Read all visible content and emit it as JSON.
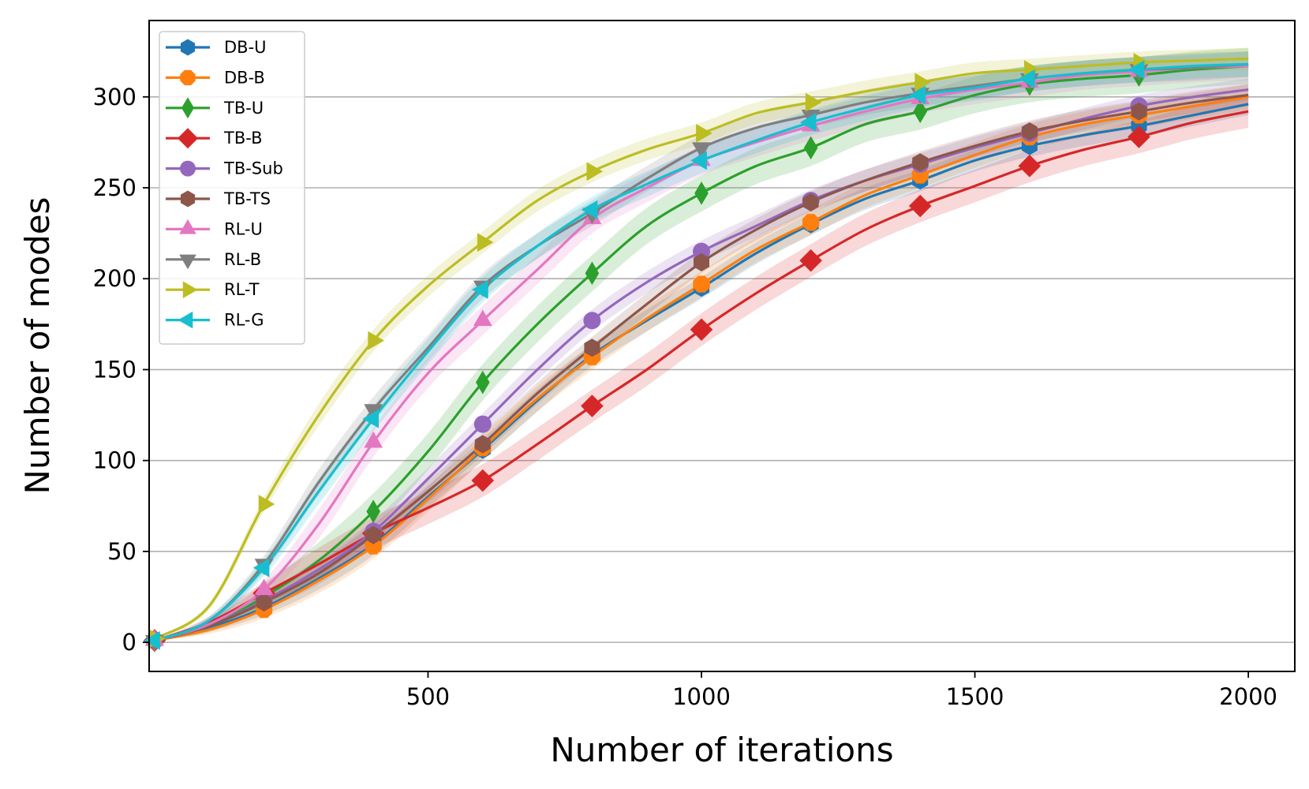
{
  "chart_data": {
    "type": "line",
    "title": "",
    "xlabel": "Number of iterations",
    "ylabel": "Number of modes",
    "xlim": [
      -10,
      2085
    ],
    "ylim": [
      -16,
      342
    ],
    "xticks": [
      500,
      1000,
      1500,
      2000
    ],
    "yticks": [
      0,
      50,
      100,
      150,
      200,
      250,
      300
    ],
    "grid": "horizontal",
    "legend_position": "top-left",
    "marker_x": [
      0,
      200,
      400,
      600,
      800,
      1000,
      1200,
      1400,
      1600,
      1800
    ],
    "series": [
      {
        "name": "DB-U",
        "color": "#1f77b4",
        "marker": "hexagon",
        "x": [
          0,
          100,
          200,
          300,
          400,
          500,
          600,
          700,
          800,
          900,
          1000,
          1100,
          1200,
          1300,
          1400,
          1500,
          1600,
          1700,
          1800,
          1900,
          2000
        ],
        "values": [
          1,
          8,
          19,
          35,
          54,
          80,
          106,
          133,
          158,
          177,
          195,
          214,
          230,
          244,
          254,
          265,
          273,
          279,
          284,
          290,
          296
        ],
        "band": 6
      },
      {
        "name": "DB-B",
        "color": "#ff7f0e",
        "marker": "octagon",
        "x": [
          0,
          100,
          200,
          300,
          400,
          500,
          600,
          700,
          800,
          900,
          1000,
          1100,
          1200,
          1300,
          1400,
          1500,
          1600,
          1700,
          1800,
          1900,
          2000
        ],
        "values": [
          1,
          7,
          18,
          34,
          53,
          79,
          107,
          134,
          157,
          178,
          197,
          216,
          231,
          246,
          257,
          268,
          278,
          285,
          290,
          295,
          300
        ],
        "band": 7
      },
      {
        "name": "TB-U",
        "color": "#2ca02c",
        "marker": "thin-diamond",
        "x": [
          0,
          100,
          200,
          300,
          400,
          500,
          600,
          700,
          800,
          900,
          1000,
          1100,
          1200,
          1300,
          1400,
          1500,
          1600,
          1700,
          1800,
          1900,
          2000
        ],
        "values": [
          1,
          9,
          25,
          45,
          72,
          105,
          143,
          175,
          203,
          229,
          247,
          262,
          272,
          285,
          292,
          301,
          307,
          310,
          312,
          315,
          317
        ],
        "band": 10
      },
      {
        "name": "TB-B",
        "color": "#d62728",
        "marker": "diamond",
        "x": [
          0,
          100,
          200,
          300,
          400,
          500,
          600,
          700,
          800,
          900,
          1000,
          1100,
          1200,
          1300,
          1400,
          1500,
          1600,
          1700,
          1800,
          1900,
          2000
        ],
        "values": [
          1,
          11,
          27,
          43,
          60,
          74,
          89,
          109,
          130,
          150,
          172,
          192,
          210,
          227,
          240,
          251,
          262,
          271,
          278,
          286,
          292
        ],
        "band": 9
      },
      {
        "name": "TB-Sub",
        "color": "#9467bd",
        "marker": "circle",
        "x": [
          0,
          100,
          200,
          300,
          400,
          500,
          600,
          700,
          800,
          900,
          1000,
          1100,
          1200,
          1300,
          1400,
          1500,
          1600,
          1700,
          1800,
          1900,
          2000
        ],
        "values": [
          1,
          9,
          23,
          40,
          61,
          90,
          120,
          150,
          177,
          198,
          215,
          229,
          243,
          254,
          263,
          272,
          280,
          288,
          295,
          300,
          304
        ],
        "band": 6
      },
      {
        "name": "TB-TS",
        "color": "#8c564b",
        "marker": "hexagon",
        "x": [
          0,
          100,
          200,
          300,
          400,
          500,
          600,
          700,
          800,
          900,
          1000,
          1100,
          1200,
          1300,
          1400,
          1500,
          1600,
          1700,
          1800,
          1900,
          2000
        ],
        "values": [
          1,
          9,
          22,
          38,
          59,
          83,
          109,
          137,
          162,
          186,
          209,
          227,
          242,
          254,
          264,
          273,
          281,
          287,
          292,
          297,
          301
        ],
        "band": 6
      },
      {
        "name": "RL-U",
        "color": "#e377c2",
        "marker": "triangle-up",
        "x": [
          0,
          100,
          200,
          300,
          400,
          500,
          600,
          700,
          800,
          900,
          1000,
          1100,
          1200,
          1300,
          1400,
          1500,
          1600,
          1700,
          1800,
          1900,
          2000
        ],
        "values": [
          1,
          10,
          29,
          65,
          110,
          148,
          177,
          205,
          233,
          250,
          265,
          275,
          284,
          292,
          299,
          304,
          308,
          312,
          314,
          316,
          317
        ],
        "band": 8
      },
      {
        "name": "RL-B",
        "color": "#7f7f7f",
        "marker": "triangle-down",
        "x": [
          0,
          100,
          200,
          300,
          400,
          500,
          600,
          700,
          800,
          900,
          1000,
          1100,
          1200,
          1300,
          1400,
          1500,
          1600,
          1700,
          1800,
          1900,
          2000
        ],
        "values": [
          1,
          12,
          43,
          88,
          128,
          162,
          196,
          218,
          236,
          255,
          272,
          283,
          290,
          297,
          302,
          306,
          310,
          313,
          315,
          316,
          318
        ],
        "band": 7
      },
      {
        "name": "RL-T",
        "color": "#bcbd22",
        "marker": "triangle-right",
        "x": [
          0,
          100,
          200,
          300,
          400,
          500,
          600,
          700,
          800,
          900,
          1000,
          1100,
          1200,
          1300,
          1400,
          1500,
          1600,
          1700,
          1800,
          1900,
          2000
        ],
        "values": [
          2,
          20,
          76,
          125,
          166,
          196,
          220,
          243,
          259,
          271,
          280,
          291,
          297,
          303,
          308,
          313,
          315,
          317,
          319,
          320,
          321
        ],
        "band": 6
      },
      {
        "name": "RL-G",
        "color": "#17becf",
        "marker": "triangle-left",
        "x": [
          0,
          100,
          200,
          300,
          400,
          500,
          600,
          700,
          800,
          900,
          1000,
          1100,
          1200,
          1300,
          1400,
          1500,
          1600,
          1700,
          1800,
          1900,
          2000
        ],
        "values": [
          1,
          12,
          41,
          83,
          123,
          160,
          194,
          218,
          238,
          252,
          265,
          276,
          286,
          294,
          301,
          305,
          310,
          313,
          315,
          317,
          318
        ],
        "band": 7
      }
    ]
  }
}
